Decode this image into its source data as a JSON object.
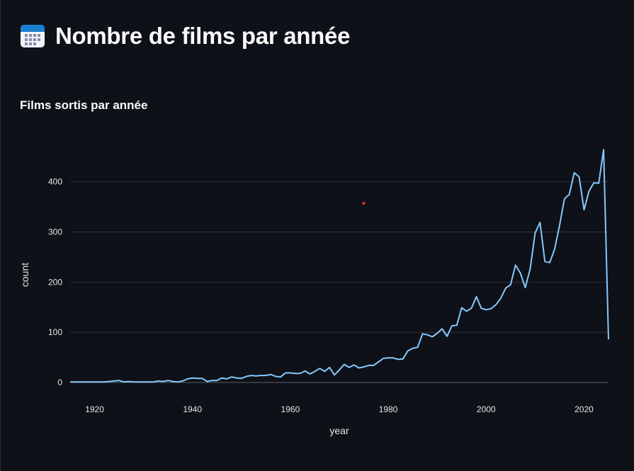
{
  "page": {
    "title": "Nombre de films par année",
    "icon": "calendar-icon"
  },
  "chart_data": {
    "type": "line",
    "title": "Films sortis par année",
    "xlabel": "year",
    "ylabel": "count",
    "xlim": [
      1915,
      2025
    ],
    "ylim": [
      0,
      480
    ],
    "x_ticks": [
      1920,
      1940,
      1960,
      1980,
      2000,
      2020
    ],
    "y_ticks": [
      0,
      100,
      200,
      300,
      400
    ],
    "grid": true,
    "line_color": "#83c9ff",
    "series": [
      {
        "x": [
          1915,
          1916,
          1917,
          1918,
          1919,
          1920,
          1921,
          1922,
          1923,
          1924,
          1925,
          1926,
          1927,
          1928,
          1929,
          1930,
          1931,
          1932,
          1933,
          1934,
          1935,
          1936,
          1937,
          1938,
          1939,
          1940,
          1941,
          1942,
          1943,
          1944,
          1945,
          1946,
          1947,
          1948,
          1949,
          1950,
          1951,
          1952,
          1953,
          1954,
          1955,
          1956,
          1957,
          1958,
          1959,
          1960,
          1961,
          1962,
          1963,
          1964,
          1965,
          1966,
          1967,
          1968,
          1969,
          1970,
          1971,
          1972,
          1973,
          1974,
          1975,
          1976,
          1977,
          1978,
          1979,
          1980,
          1981,
          1982,
          1983,
          1984,
          1985,
          1986,
          1987,
          1988,
          1989,
          1990,
          1991,
          1992,
          1993,
          1994,
          1995,
          1996,
          1997,
          1998,
          1999,
          2000,
          2001,
          2002,
          2003,
          2004,
          2005,
          2006,
          2007,
          2008,
          2009,
          2010,
          2011,
          2012,
          2013,
          2014,
          2015,
          2016,
          2017,
          2018,
          2019,
          2020,
          2021,
          2022,
          2023,
          2024,
          2025
        ],
        "values": [
          1,
          1,
          1,
          1,
          1,
          1,
          1,
          1,
          2,
          3,
          4,
          1,
          2,
          1,
          1,
          1,
          1,
          1,
          3,
          2,
          4,
          2,
          1,
          3,
          7,
          9,
          8,
          8,
          2,
          4,
          4,
          9,
          7,
          11,
          9,
          8,
          12,
          14,
          13,
          14,
          14,
          16,
          12,
          11,
          19,
          19,
          18,
          18,
          23,
          17,
          22,
          28,
          22,
          30,
          15,
          25,
          36,
          30,
          35,
          29,
          31,
          34,
          34,
          41,
          48,
          49,
          49,
          46,
          47,
          63,
          68,
          70,
          97,
          95,
          91,
          98,
          107,
          92,
          113,
          114,
          149,
          142,
          148,
          171,
          148,
          145,
          147,
          155,
          168,
          188,
          195,
          234,
          218,
          189,
          227,
          298,
          319,
          241,
          239,
          266,
          313,
          366,
          375,
          418,
          410,
          344,
          381,
          398,
          397,
          464,
          86
        ]
      }
    ],
    "annotation": {
      "x": 1975,
      "y": 357,
      "color": "#ff2b2b"
    }
  }
}
